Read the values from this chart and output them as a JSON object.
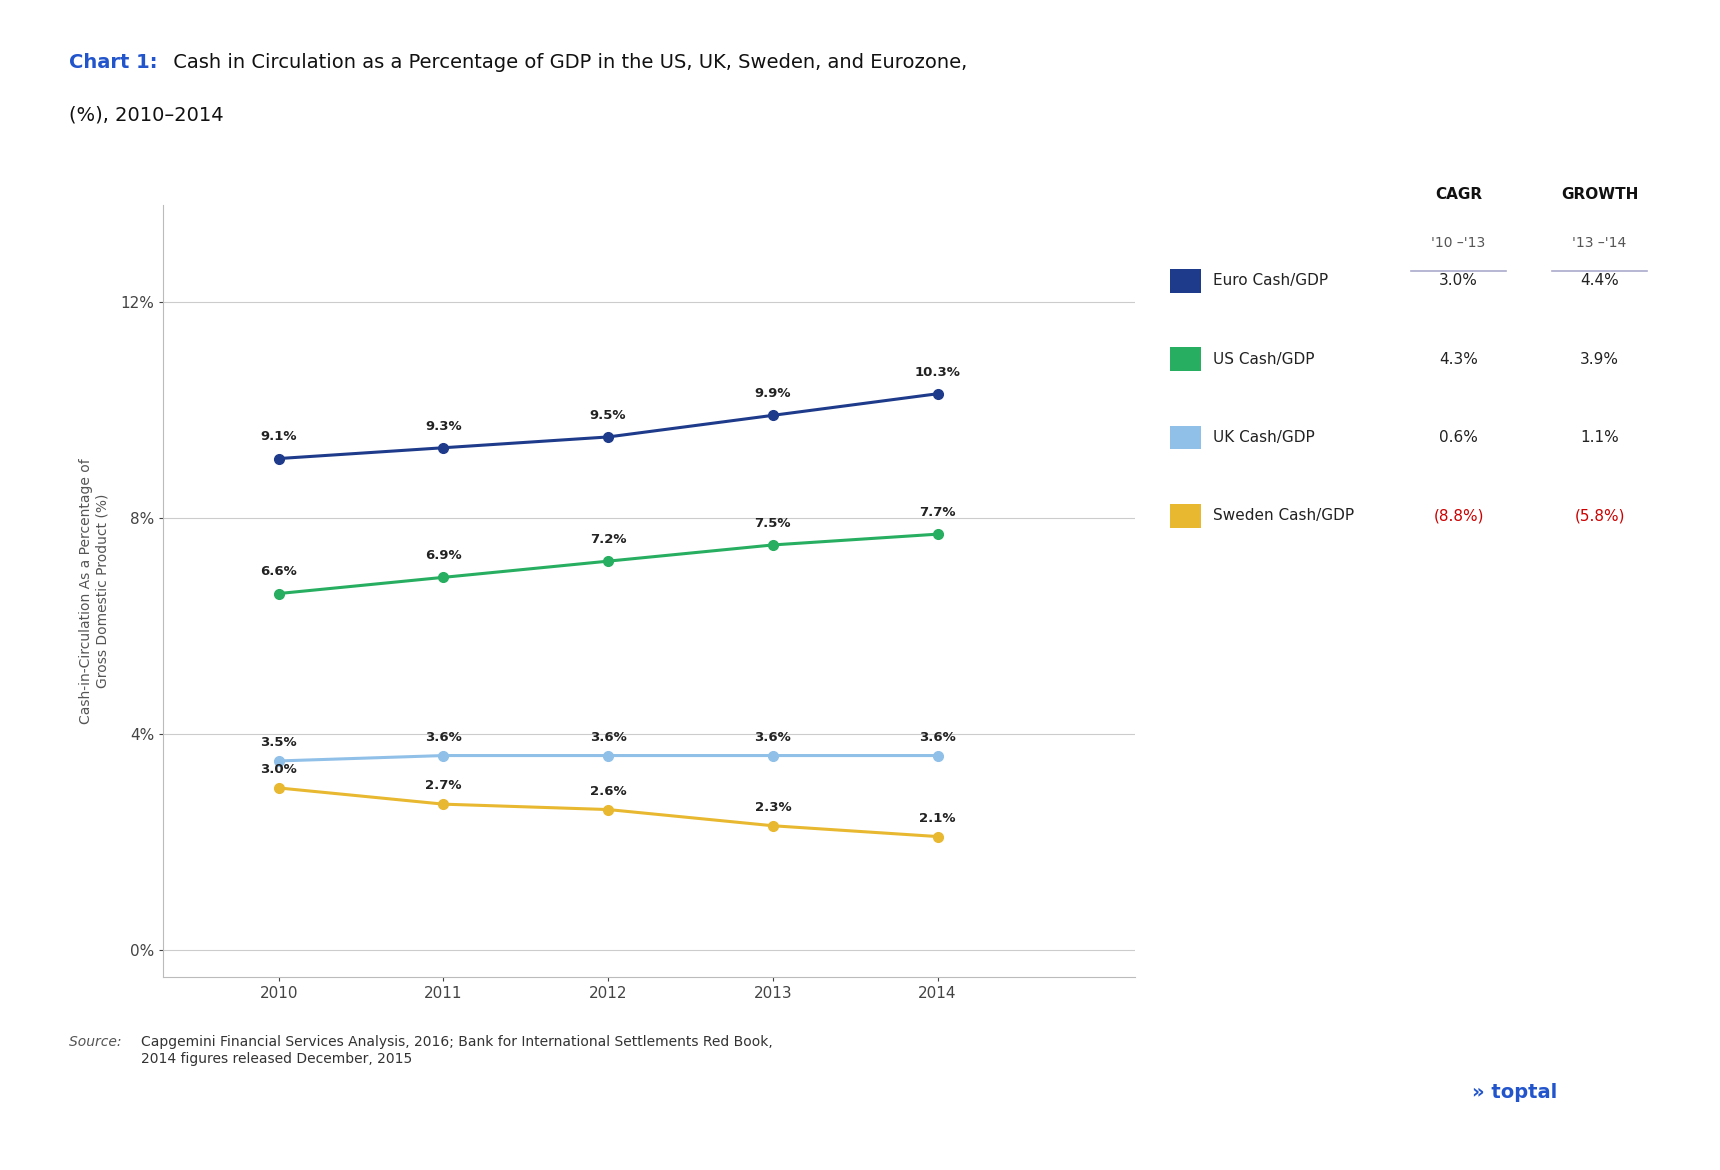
{
  "title_bold": "Chart 1:",
  "title_normal": " Cash in Circulation as a Percentage of GDP in the US, UK, Sweden, and Eurozone,",
  "title_line2": "(%), 2010–2014",
  "years": [
    2010,
    2011,
    2012,
    2013,
    2014
  ],
  "series": [
    {
      "label": "Euro Cash/GDP",
      "values": [
        9.1,
        9.3,
        9.5,
        9.9,
        10.3
      ],
      "color": "#1e3a8a",
      "cagr": "3.0%",
      "growth": "4.4%",
      "cagr_color": "#222222",
      "growth_color": "#222222"
    },
    {
      "label": "US Cash/GDP",
      "values": [
        6.6,
        6.9,
        7.2,
        7.5,
        7.7
      ],
      "color": "#27ae60",
      "cagr": "4.3%",
      "growth": "3.9%",
      "cagr_color": "#222222",
      "growth_color": "#222222"
    },
    {
      "label": "UK Cash/GDP",
      "values": [
        3.5,
        3.6,
        3.6,
        3.6,
        3.6
      ],
      "color": "#90c0e8",
      "cagr": "0.6%",
      "growth": "1.1%",
      "cagr_color": "#222222",
      "growth_color": "#222222"
    },
    {
      "label": "Sweden Cash/GDP",
      "values": [
        3.0,
        2.7,
        2.6,
        2.3,
        2.1
      ],
      "color": "#e8b830",
      "cagr": "(8.8%)",
      "growth": "(5.8%)",
      "cagr_color": "#cc0000",
      "growth_color": "#cc0000"
    }
  ],
  "ylabel": "Cash-in-Circulation As a Percentage of\nGross Domestic Product (%)",
  "yticks": [
    0,
    4,
    8,
    12
  ],
  "ytick_labels": [
    "0%",
    "4%",
    "8%",
    "12%"
  ],
  "ylim": [
    -0.5,
    13.8
  ],
  "xlim_left": 2009.3,
  "xlim_right": 2015.2,
  "source_label": "Source: ",
  "source_text": "Capgemini Financial Services Analysis, 2016; Bank for International Settlements Red Book,\n2014 figures released December, 2015",
  "bg_color": "#ffffff",
  "axis_color": "#bbbbbb",
  "grid_color": "#cccccc",
  "title_color_bold": "#2255cc",
  "title_color_normal": "#111111",
  "label_color": "#222222",
  "cagr_header": "CAGR",
  "cagr_subheader": "'10 –'13",
  "growth_header": "GROWTH",
  "growth_subheader": "'13 –'14",
  "marker_size": 7,
  "line_width": 2.2
}
